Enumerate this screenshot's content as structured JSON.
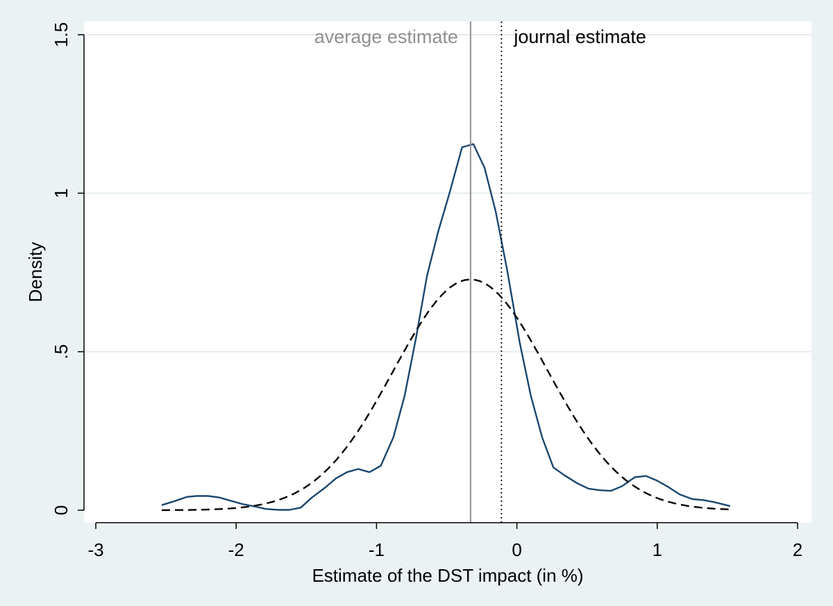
{
  "chart_data": {
    "type": "line",
    "title": "",
    "xlabel": "Estimate of the DST impact (in %)",
    "ylabel": "Density",
    "xlim": [
      -3,
      2
    ],
    "ylim": [
      0,
      1.5
    ],
    "x_ticks": [
      {
        "value": -3,
        "label": "-3"
      },
      {
        "value": -2,
        "label": "-2"
      },
      {
        "value": -1,
        "label": "-1"
      },
      {
        "value": 0,
        "label": "0"
      },
      {
        "value": 1,
        "label": "1"
      },
      {
        "value": 2,
        "label": "2"
      }
    ],
    "y_ticks": [
      {
        "value": 0,
        "label": "0"
      },
      {
        "value": 0.5,
        "label": ".5"
      },
      {
        "value": 1,
        "label": "1"
      },
      {
        "value": 1.5,
        "label": "1.5"
      }
    ],
    "grid": "horizontal",
    "series": [
      {
        "style": "solid",
        "color": "#1a476f",
        "x": [
          -2.53,
          -2.43,
          -2.35,
          -2.28,
          -2.2,
          -2.12,
          -2.04,
          -1.96,
          -1.87,
          -1.79,
          -1.7,
          -1.62,
          -1.54,
          -1.46,
          -1.37,
          -1.29,
          -1.21,
          -1.13,
          -1.05,
          -0.97,
          -0.88,
          -0.8,
          -0.72,
          -0.64,
          -0.56,
          -0.48,
          -0.39,
          -0.31,
          -0.23,
          -0.15,
          -0.07,
          0.02,
          0.1,
          0.18,
          0.26,
          0.34,
          0.43,
          0.51,
          0.59,
          0.67,
          0.75,
          0.84,
          0.92,
          1.0,
          1.08,
          1.16,
          1.25,
          1.33,
          1.41,
          1.52
        ],
        "y": [
          0.016,
          0.03,
          0.042,
          0.045,
          0.045,
          0.04,
          0.03,
          0.02,
          0.012,
          0.004,
          0.001,
          0.001,
          0.008,
          0.04,
          0.07,
          0.1,
          0.12,
          0.13,
          0.12,
          0.14,
          0.23,
          0.36,
          0.54,
          0.74,
          0.88,
          1.0,
          1.145,
          1.155,
          1.08,
          0.94,
          0.76,
          0.53,
          0.36,
          0.23,
          0.135,
          0.11,
          0.085,
          0.068,
          0.063,
          0.061,
          0.076,
          0.104,
          0.108,
          0.093,
          0.073,
          0.05,
          0.035,
          0.032,
          0.025,
          0.013
        ]
      },
      {
        "style": "dashed",
        "color": "#000000",
        "mean": -0.33,
        "sd": 0.548,
        "x_range": [
          -2.53,
          1.52
        ]
      }
    ],
    "reference_lines": [
      {
        "name": "average estimate",
        "x": -0.33,
        "color": "#909090",
        "style": "solid"
      },
      {
        "name": "journal estimate",
        "x": -0.11,
        "color": "#000000",
        "style": "dotted"
      }
    ]
  }
}
